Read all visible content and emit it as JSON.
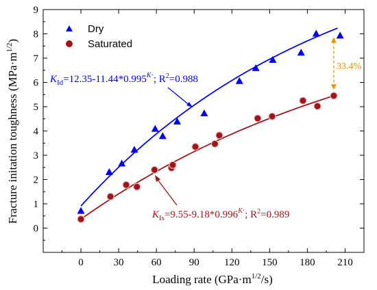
{
  "chart_data": {
    "type": "scatter",
    "xlabel_parts": [
      "Loading rate (GPa·m",
      "1/2",
      "/s)"
    ],
    "ylabel_parts": [
      "Fracture initation toughness (MPa·m",
      "1/2",
      ")"
    ],
    "xlim": [
      -30,
      225
    ],
    "ylim": [
      -1,
      9
    ],
    "xticks": [
      0,
      30,
      60,
      90,
      120,
      150,
      180,
      210
    ],
    "yticks": [
      0,
      1,
      2,
      3,
      4,
      5,
      6,
      7,
      8,
      9
    ],
    "legend": {
      "position": "top-left"
    },
    "series": [
      {
        "name": "Dry",
        "marker": "triangle",
        "color": "#0000ff",
        "x": [
          0,
          22.5,
          32.5,
          42.5,
          59,
          65,
          76.5,
          98,
          126,
          139,
          152.5,
          175,
          187,
          206
        ],
        "y": [
          0.7,
          2.3,
          2.65,
          3.22,
          4.08,
          3.78,
          4.38,
          4.72,
          6.05,
          6.58,
          6.92,
          7.22,
          8.0,
          7.92
        ]
      },
      {
        "name": "Saturated",
        "marker": "circle",
        "color": "#a0141c",
        "x": [
          0,
          23.5,
          36,
          44.5,
          58.5,
          72,
          73,
          91,
          106.5,
          110,
          140.5,
          152,
          176.5,
          188,
          201
        ],
        "y": [
          0.37,
          1.3,
          1.78,
          1.7,
          2.4,
          2.48,
          2.6,
          3.35,
          3.47,
          3.82,
          4.52,
          4.6,
          5.25,
          5.02,
          5.45
        ]
      }
    ],
    "fits": [
      {
        "series": "Dry",
        "a": 12.35,
        "b": 11.44,
        "c": 0.995,
        "color": "#0000ff"
      },
      {
        "series": "Saturated",
        "a": 9.55,
        "b": 9.18,
        "c": 0.996,
        "color": "#a0141c"
      }
    ],
    "annotations": {
      "dry_eq": {
        "K": "K",
        "sub": "Id",
        "body": "=12.35-11.44*0.995",
        "sup_k": "K",
        "sup_dot": "·",
        "tail": "; R",
        "r2_sup": "2",
        "r2": "=0.988"
      },
      "sat_eq": {
        "K": "K",
        "sub": "Is",
        "body": "=9.55-9.18*0.996",
        "sup_k": "K",
        "sup_dot": "·",
        "tail": "; R",
        "r2_sup": "2",
        "r2": "=0.989"
      },
      "percent": {
        "text": "33.4%",
        "x": 201,
        "y_top": 8.0,
        "y_bottom": 5.5,
        "color": "#e69500"
      }
    }
  }
}
